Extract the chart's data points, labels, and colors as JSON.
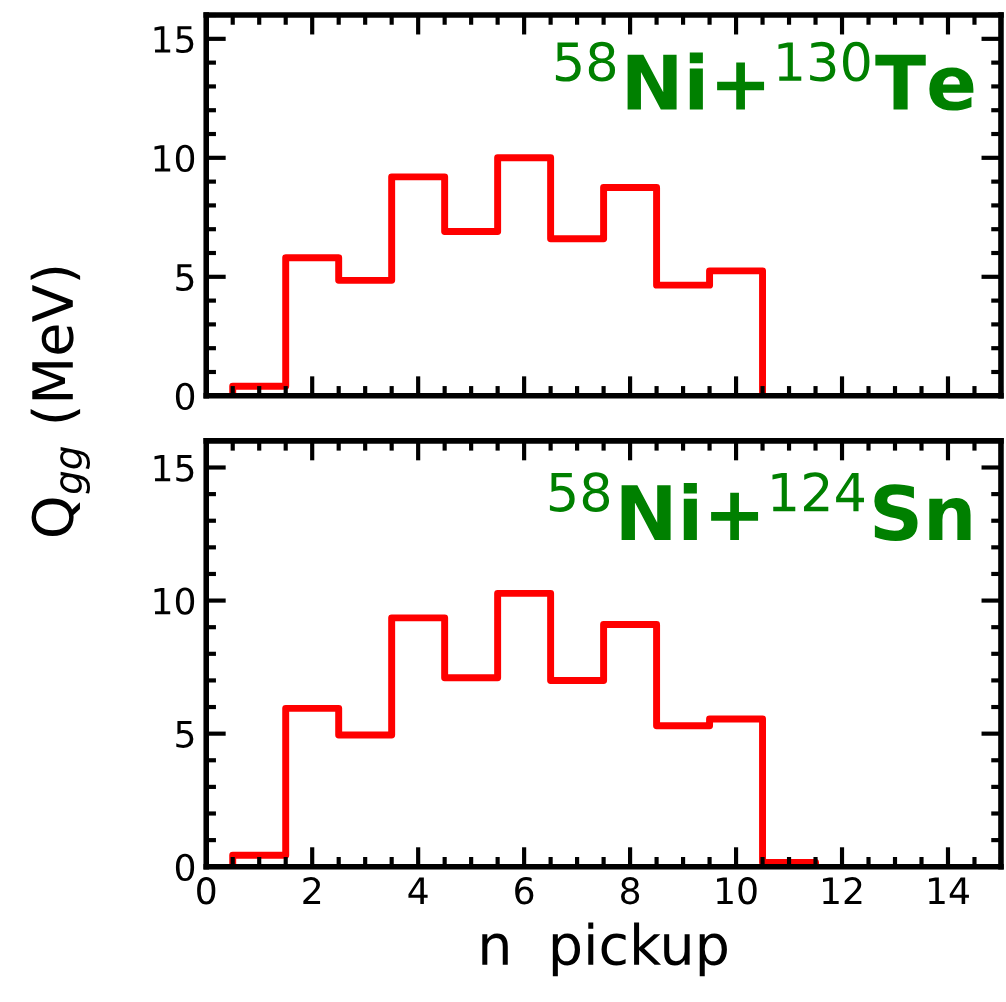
{
  "chart_data": [
    {
      "type": "histogram",
      "annotations": [
        "$^{58}$Ni+$^{130}$Te"
      ],
      "bins": [
        0.5,
        1.5,
        2.5,
        3.5,
        4.5,
        5.5,
        6.5,
        7.5,
        8.5,
        9.5,
        10.5
      ],
      "values": [
        0.4,
        5.8,
        4.85,
        9.2,
        6.9,
        10.0,
        6.6,
        8.75,
        4.65,
        5.25
      ],
      "color": "#ff0000",
      "xlim": [
        0,
        15
      ],
      "ylim": [
        0,
        16
      ],
      "xticks": [
        0,
        2,
        4,
        6,
        8,
        10,
        12,
        14
      ],
      "yticks": [
        0,
        5,
        10,
        15
      ],
      "tick_labels": "y",
      "grid": false
    },
    {
      "type": "histogram",
      "annotations": [
        "$^{58}$Ni+$^{124}$Sn"
      ],
      "xlabel": "n  pickup",
      "ylabel": "Q$_{gg}$ (MeV)",
      "bins": [
        0.5,
        1.5,
        2.5,
        3.5,
        4.5,
        5.5,
        6.5,
        7.5,
        8.5,
        9.5,
        10.5,
        11.5
      ],
      "values": [
        0.43,
        5.95,
        4.95,
        9.35,
        7.1,
        10.27,
        7.0,
        9.1,
        5.3,
        5.55,
        0.16
      ],
      "color": "#ff0000",
      "xlim": [
        0,
        15
      ],
      "ylim": [
        0,
        16
      ],
      "xticks": [
        0,
        2,
        4,
        6,
        8,
        10,
        12,
        14
      ],
      "yticks": [
        0,
        5,
        10,
        15
      ],
      "grid": false
    }
  ]
}
